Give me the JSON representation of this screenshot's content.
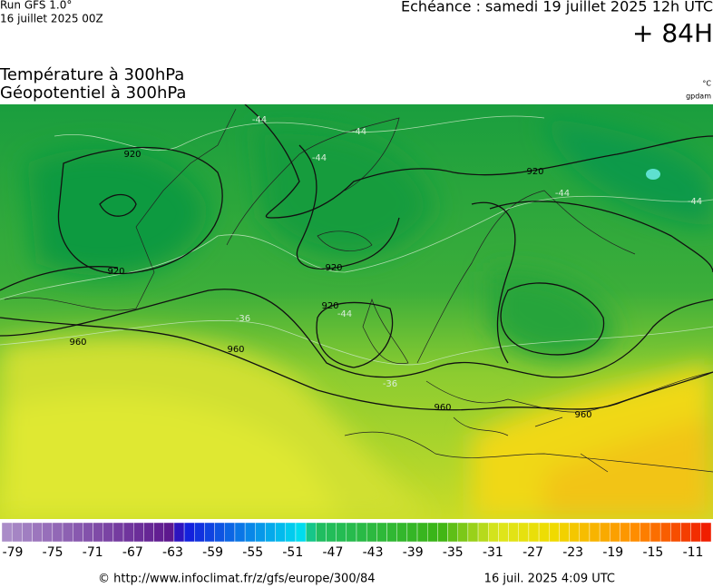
{
  "header": {
    "run": "Run GFS 1.0°",
    "run_date": "16 juillet 2025 00Z",
    "valid": "Echéance : samedi 19 juillet 2025 12h UTC",
    "lead": "+ 84H",
    "title1": "Température à 300hPa",
    "title2": "Géopotentiel à 300hPa",
    "unit1": "°C",
    "unit2": "gpdam"
  },
  "map": {
    "contour_labels": [
      "920",
      "920",
      "920",
      "920",
      "920",
      "960",
      "960",
      "960",
      "960",
      "-44",
      "-44",
      "-44",
      "-44",
      "-44",
      "-44",
      "-36",
      "-36"
    ]
  },
  "colorbar": {
    "labels": [
      -79,
      -75,
      -71,
      -67,
      -63,
      -59,
      -55,
      -51,
      -47,
      -43,
      -39,
      -35,
      -31,
      -27,
      -23,
      -19,
      -15,
      -11
    ]
  },
  "footer": {
    "url": "© http://www.infoclimat.fr/z/gfs/europe/300/84",
    "generated": "16 juil. 2025  4:09 UTC"
  }
}
